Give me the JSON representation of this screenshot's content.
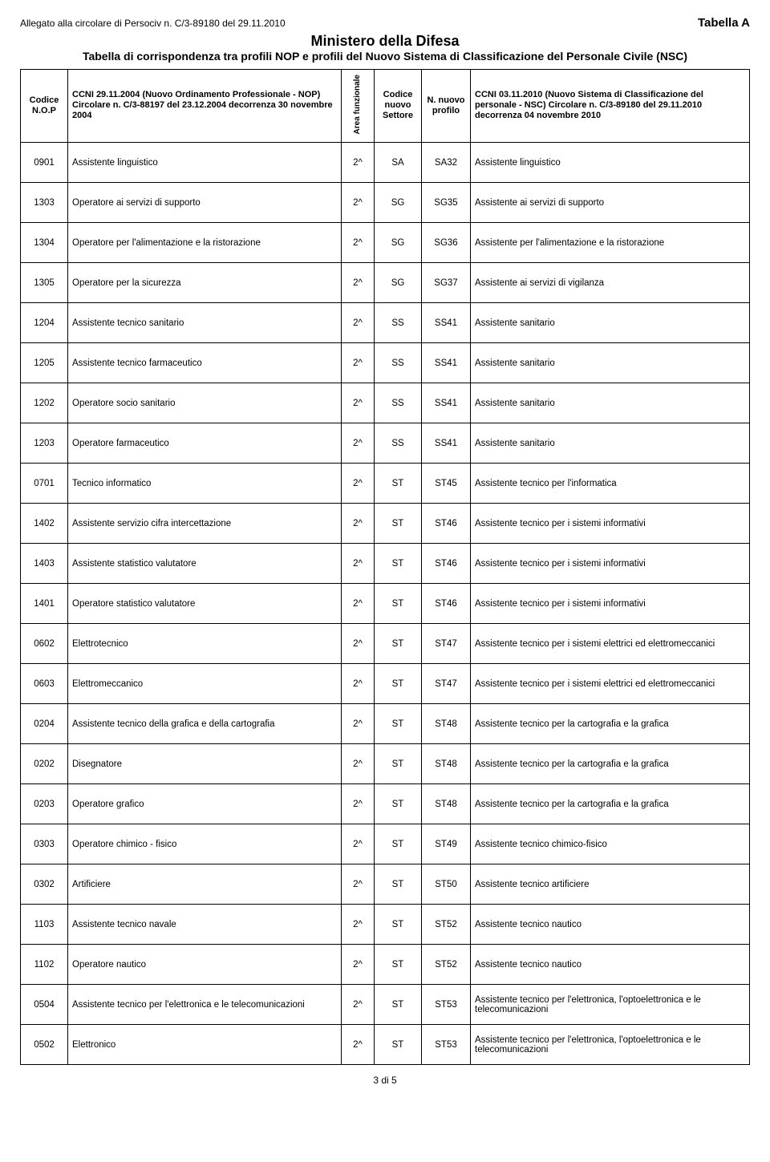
{
  "header": {
    "allegato": "Allegato alla circolare di Persociv n. C/3-89180 del 29.11.2010",
    "tabella_label": "Tabella  A",
    "ministero": "Ministero della Difesa",
    "subtitle": "Tabella di corrispondenza tra profili NOP e profili del Nuovo Sistema di Classificazione del Personale Civile (NSC)"
  },
  "columns": {
    "code": "Codice N.O.P",
    "desc1": "CCNI 29.11.2004 (Nuovo Ordinamento Professionale - NOP) Circolare n. C/3-88197 del 23.12.2004 decorrenza 30 novembre 2004",
    "area": "Area funzionale",
    "settore": "Codice nuovo Settore",
    "profilo": "N. nuovo profilo",
    "desc2": "CCNI 03.11.2010 (Nuovo Sistema di Classificazione del personale - NSC) Circolare n. C/3-89180 del 29.11.2010 decorrenza 04 novembre 2010"
  },
  "rows": [
    {
      "code": "0901",
      "desc1": "Assistente linguistico",
      "area": "2^",
      "sett": "SA",
      "prof": "SA32",
      "desc2": "Assistente linguistico"
    },
    {
      "code": "1303",
      "desc1": "Operatore ai servizi di supporto",
      "area": "2^",
      "sett": "SG",
      "prof": "SG35",
      "desc2": "Assistente ai servizi di supporto"
    },
    {
      "code": "1304",
      "desc1": "Operatore per l'alimentazione e la ristorazione",
      "area": "2^",
      "sett": "SG",
      "prof": "SG36",
      "desc2": "Assistente per l'alimentazione e la ristorazione"
    },
    {
      "code": "1305",
      "desc1": "Operatore per la sicurezza",
      "area": "2^",
      "sett": "SG",
      "prof": "SG37",
      "desc2": "Assistente ai servizi di vigilanza"
    },
    {
      "code": "1204",
      "desc1": "Assistente tecnico sanitario",
      "area": "2^",
      "sett": "SS",
      "prof": "SS41",
      "desc2": "Assistente sanitario"
    },
    {
      "code": "1205",
      "desc1": "Assistente tecnico farmaceutico",
      "area": "2^",
      "sett": "SS",
      "prof": "SS41",
      "desc2": "Assistente sanitario"
    },
    {
      "code": "1202",
      "desc1": "Operatore socio sanitario",
      "area": "2^",
      "sett": "SS",
      "prof": "SS41",
      "desc2": "Assistente sanitario"
    },
    {
      "code": "1203",
      "desc1": "Operatore farmaceutico",
      "area": "2^",
      "sett": "SS",
      "prof": "SS41",
      "desc2": "Assistente sanitario"
    },
    {
      "code": "0701",
      "desc1": "Tecnico  informatico",
      "area": "2^",
      "sett": "ST",
      "prof": "ST45",
      "desc2": "Assistente tecnico per l'informatica"
    },
    {
      "code": "1402",
      "desc1": "Assistente servizio cifra intercettazione",
      "area": "2^",
      "sett": "ST",
      "prof": "ST46",
      "desc2": "Assistente tecnico per i sistemi informativi"
    },
    {
      "code": "1403",
      "desc1": "Assistente statistico valutatore",
      "area": "2^",
      "sett": "ST",
      "prof": "ST46",
      "desc2": "Assistente tecnico per i sistemi informativi"
    },
    {
      "code": "1401",
      "desc1": "Operatore statistico valutatore",
      "area": "2^",
      "sett": "ST",
      "prof": "ST46",
      "desc2": "Assistente tecnico per i sistemi informativi"
    },
    {
      "code": "0602",
      "desc1": "Elettrotecnico",
      "area": "2^",
      "sett": "ST",
      "prof": "ST47",
      "desc2": "Assistente tecnico per i sistemi elettrici ed elettromeccanici"
    },
    {
      "code": "0603",
      "desc1": "Elettromeccanico",
      "area": "2^",
      "sett": "ST",
      "prof": "ST47",
      "desc2": "Assistente tecnico per i sistemi elettrici ed elettromeccanici"
    },
    {
      "code": "0204",
      "desc1": "Assistente tecnico della grafica e della cartografia",
      "area": "2^",
      "sett": "ST",
      "prof": "ST48",
      "desc2": "Assistente tecnico per la cartografia e la grafica"
    },
    {
      "code": "0202",
      "desc1": "Disegnatore",
      "area": "2^",
      "sett": "ST",
      "prof": "ST48",
      "desc2": "Assistente tecnico per la cartografia e la grafica"
    },
    {
      "code": "0203",
      "desc1": "Operatore grafico",
      "area": "2^",
      "sett": "ST",
      "prof": "ST48",
      "desc2": "Assistente tecnico per la cartografia e la grafica"
    },
    {
      "code": "0303",
      "desc1": "Operatore chimico - fisico",
      "area": "2^",
      "sett": "ST",
      "prof": "ST49",
      "desc2": "Assistente tecnico chimico-fisico"
    },
    {
      "code": "0302",
      "desc1": "Artificiere",
      "area": "2^",
      "sett": "ST",
      "prof": "ST50",
      "desc2": "Assistente tecnico artificiere"
    },
    {
      "code": "1103",
      "desc1": "Assistente tecnico navale",
      "area": "2^",
      "sett": "ST",
      "prof": "ST52",
      "desc2": "Assistente tecnico nautico"
    },
    {
      "code": "1102",
      "desc1": "Operatore nautico",
      "area": "2^",
      "sett": "ST",
      "prof": "ST52",
      "desc2": "Assistente tecnico nautico"
    },
    {
      "code": "0504",
      "desc1": "Assistente tecnico per l'elettronica e le telecomunicazioni",
      "area": "2^",
      "sett": "ST",
      "prof": "ST53",
      "desc2": "Assistente tecnico per l'elettronica, l'optoelettronica e le telecomunicazioni"
    },
    {
      "code": "0502",
      "desc1": "Elettronico",
      "area": "2^",
      "sett": "ST",
      "prof": "ST53",
      "desc2": "Assistente tecnico per l'elettronica, l'optoelettronica e le telecomunicazioni"
    }
  ],
  "footer": "3 di 5"
}
